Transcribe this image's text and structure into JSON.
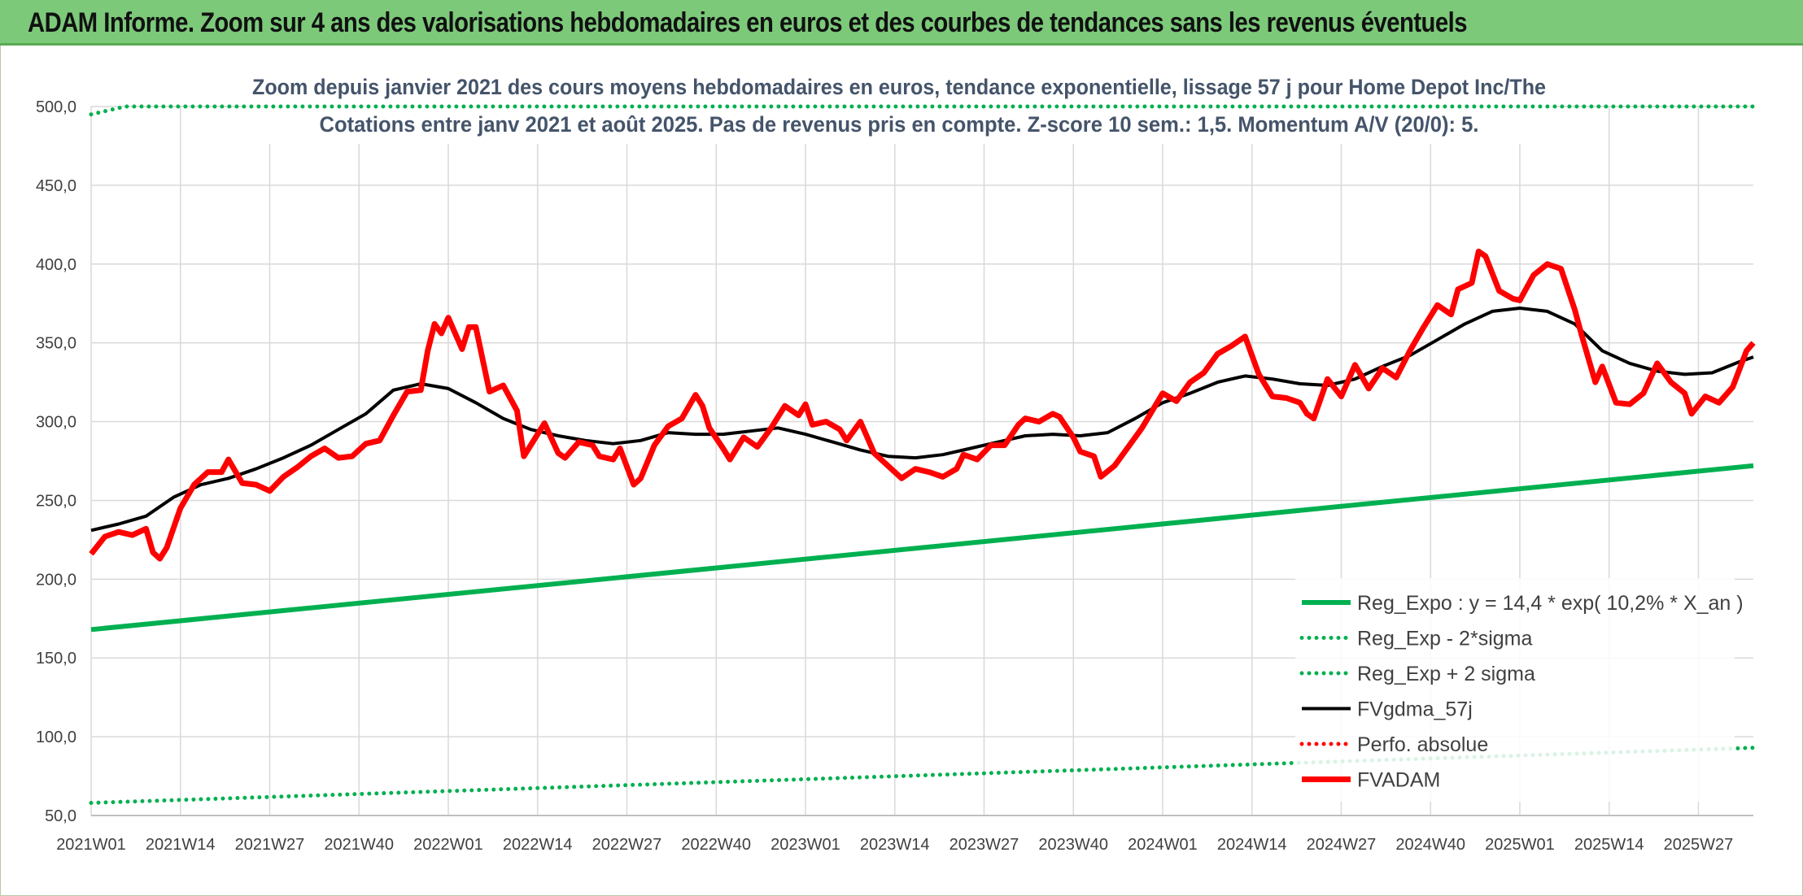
{
  "banner": {
    "title": "ADAM Informe. Zoom sur 4 ans des valorisations hebdomadaires en euros et des courbes de tendances sans les revenus éventuels"
  },
  "colors": {
    "banner_bg": "#7cc97a",
    "regression": "#00b050",
    "price": "#ff0000",
    "average": "#000000"
  },
  "chart_data": {
    "type": "line",
    "title": "Zoom depuis janvier 2021 des cours moyens hebdomadaires en euros, tendance exponentielle, lissage 57 j pour Home Depot Inc/The",
    "subtitle": "Cotations entre janv 2021 et août 2025. Pas de revenus pris en compte. Z-score 10 sem.: 1,5. Momentum A/V (20/0): 5.",
    "ylim": [
      50,
      500
    ],
    "y_ticks": [
      "50,0",
      "100,0",
      "150,0",
      "200,0",
      "250,0",
      "300,0",
      "350,0",
      "400,0",
      "450,0",
      "500,0"
    ],
    "x_range": [
      "2021W01",
      "2025W35"
    ],
    "x_ticks": [
      "2021W01",
      "2021W14",
      "2021W27",
      "2021W40",
      "2022W01",
      "2022W14",
      "2022W27",
      "2022W40",
      "2023W01",
      "2023W14",
      "2023W27",
      "2023W40",
      "2024W01",
      "2024W14",
      "2024W27",
      "2024W40",
      "2025W01",
      "2025W14",
      "2025W27"
    ],
    "grid": true,
    "legend_position": "bottom-right",
    "series": [
      {
        "name": "Reg_Expo : y = 14,4 * exp( 10,2% *  X_an )",
        "style": "solid-thick",
        "color": "#00b050",
        "points": [
          [
            "2021W01",
            168
          ],
          [
            "2025W35",
            272
          ]
        ]
      },
      {
        "name": "Reg_Exp - 2*sigma",
        "style": "dotted",
        "color": "#00b050",
        "points": [
          [
            "2021W01",
            58
          ],
          [
            "2025W35",
            93
          ]
        ]
      },
      {
        "name": "Reg_Exp + 2 sigma",
        "style": "dotted",
        "color": "#00b050",
        "points": [
          [
            "2021W01",
            495
          ],
          [
            "2021W06",
            500
          ],
          [
            "2025W35",
            500
          ]
        ]
      },
      {
        "name": "FVgdma_57j",
        "style": "solid",
        "color": "#000000",
        "points": [
          [
            "2021W01",
            231
          ],
          [
            "2021W05",
            235
          ],
          [
            "2021W09",
            240
          ],
          [
            "2021W13",
            252
          ],
          [
            "2021W17",
            260
          ],
          [
            "2021W21",
            264
          ],
          [
            "2021W25",
            270
          ],
          [
            "2021W29",
            277
          ],
          [
            "2021W33",
            285
          ],
          [
            "2021W37",
            295
          ],
          [
            "2021W41",
            305
          ],
          [
            "2021W45",
            320
          ],
          [
            "2021W49",
            324
          ],
          [
            "2022W01",
            321
          ],
          [
            "2022W05",
            312
          ],
          [
            "2022W09",
            302
          ],
          [
            "2022W13",
            295
          ],
          [
            "2022W17",
            291
          ],
          [
            "2022W21",
            288
          ],
          [
            "2022W25",
            286
          ],
          [
            "2022W29",
            288
          ],
          [
            "2022W33",
            293
          ],
          [
            "2022W37",
            292
          ],
          [
            "2022W41",
            292
          ],
          [
            "2022W45",
            294
          ],
          [
            "2022W49",
            296
          ],
          [
            "2023W01",
            292
          ],
          [
            "2023W05",
            287
          ],
          [
            "2023W09",
            282
          ],
          [
            "2023W13",
            278
          ],
          [
            "2023W17",
            277
          ],
          [
            "2023W21",
            279
          ],
          [
            "2023W25",
            283
          ],
          [
            "2023W29",
            287
          ],
          [
            "2023W33",
            291
          ],
          [
            "2023W37",
            292
          ],
          [
            "2023W41",
            291
          ],
          [
            "2023W45",
            293
          ],
          [
            "2023W49",
            302
          ],
          [
            "2024W01",
            312
          ],
          [
            "2024W05",
            318
          ],
          [
            "2024W09",
            325
          ],
          [
            "2024W13",
            329
          ],
          [
            "2024W17",
            327
          ],
          [
            "2024W21",
            324
          ],
          [
            "2024W25",
            323
          ],
          [
            "2024W29",
            327
          ],
          [
            "2024W33",
            335
          ],
          [
            "2024W37",
            342
          ],
          [
            "2024W41",
            352
          ],
          [
            "2024W45",
            362
          ],
          [
            "2024W49",
            370
          ],
          [
            "2025W01",
            372
          ],
          [
            "2025W05",
            370
          ],
          [
            "2025W09",
            362
          ],
          [
            "2025W13",
            345
          ],
          [
            "2025W17",
            337
          ],
          [
            "2025W21",
            332
          ],
          [
            "2025W25",
            330
          ],
          [
            "2025W29",
            331
          ],
          [
            "2025W33",
            338
          ],
          [
            "2025W35",
            341
          ]
        ]
      },
      {
        "name": "Perfo. absolue",
        "style": "dotted",
        "color": "#ff0000",
        "points": []
      },
      {
        "name": "FVADAM",
        "style": "solid-thick",
        "color": "#ff0000",
        "points": [
          [
            "2021W01",
            216
          ],
          [
            "2021W03",
            227
          ],
          [
            "2021W05",
            230
          ],
          [
            "2021W07",
            228
          ],
          [
            "2021W09",
            232
          ],
          [
            "2021W10",
            217
          ],
          [
            "2021W11",
            213
          ],
          [
            "2021W12",
            220
          ],
          [
            "2021W14",
            245
          ],
          [
            "2021W16",
            260
          ],
          [
            "2021W18",
            268
          ],
          [
            "2021W20",
            268
          ],
          [
            "2021W21",
            276
          ],
          [
            "2021W23",
            261
          ],
          [
            "2021W25",
            260
          ],
          [
            "2021W27",
            256
          ],
          [
            "2021W29",
            265
          ],
          [
            "2021W31",
            271
          ],
          [
            "2021W33",
            278
          ],
          [
            "2021W35",
            283
          ],
          [
            "2021W37",
            277
          ],
          [
            "2021W39",
            278
          ],
          [
            "2021W41",
            286
          ],
          [
            "2021W43",
            288
          ],
          [
            "2021W45",
            304
          ],
          [
            "2021W47",
            319
          ],
          [
            "2021W49",
            320
          ],
          [
            "2021W50",
            345
          ],
          [
            "2021W51",
            362
          ],
          [
            "2021W52",
            356
          ],
          [
            "2022W01",
            366
          ],
          [
            "2022W03",
            346
          ],
          [
            "2022W04",
            360
          ],
          [
            "2022W05",
            360
          ],
          [
            "2022W07",
            319
          ],
          [
            "2022W09",
            323
          ],
          [
            "2022W11",
            307
          ],
          [
            "2022W12",
            278
          ],
          [
            "2022W13",
            285
          ],
          [
            "2022W15",
            299
          ],
          [
            "2022W17",
            280
          ],
          [
            "2022W18",
            277
          ],
          [
            "2022W20",
            287
          ],
          [
            "2022W22",
            285
          ],
          [
            "2022W23",
            278
          ],
          [
            "2022W25",
            276
          ],
          [
            "2022W26",
            283
          ],
          [
            "2022W28",
            260
          ],
          [
            "2022W29",
            264
          ],
          [
            "2022W31",
            285
          ],
          [
            "2022W33",
            297
          ],
          [
            "2022W35",
            302
          ],
          [
            "2022W37",
            317
          ],
          [
            "2022W38",
            310
          ],
          [
            "2022W39",
            296
          ],
          [
            "2022W41",
            283
          ],
          [
            "2022W42",
            276
          ],
          [
            "2022W44",
            290
          ],
          [
            "2022W46",
            284
          ],
          [
            "2022W48",
            296
          ],
          [
            "2022W50",
            310
          ],
          [
            "2022W52",
            304
          ],
          [
            "2023W01",
            311
          ],
          [
            "2023W02",
            298
          ],
          [
            "2023W04",
            300
          ],
          [
            "2023W06",
            295
          ],
          [
            "2023W07",
            288
          ],
          [
            "2023W09",
            300
          ],
          [
            "2023W11",
            280
          ],
          [
            "2023W13",
            272
          ],
          [
            "2023W15",
            264
          ],
          [
            "2023W17",
            270
          ],
          [
            "2023W19",
            268
          ],
          [
            "2023W21",
            265
          ],
          [
            "2023W23",
            270
          ],
          [
            "2023W24",
            279
          ],
          [
            "2023W26",
            276
          ],
          [
            "2023W28",
            285
          ],
          [
            "2023W30",
            285
          ],
          [
            "2023W32",
            298
          ],
          [
            "2023W33",
            302
          ],
          [
            "2023W35",
            300
          ],
          [
            "2023W37",
            305
          ],
          [
            "2023W38",
            303
          ],
          [
            "2023W40",
            290
          ],
          [
            "2023W41",
            281
          ],
          [
            "2023W43",
            278
          ],
          [
            "2023W44",
            265
          ],
          [
            "2023W46",
            272
          ],
          [
            "2023W48",
            284
          ],
          [
            "2023W50",
            296
          ],
          [
            "2024W01",
            318
          ],
          [
            "2024W03",
            313
          ],
          [
            "2024W05",
            325
          ],
          [
            "2024W07",
            331
          ],
          [
            "2024W09",
            343
          ],
          [
            "2024W11",
            348
          ],
          [
            "2024W13",
            354
          ],
          [
            "2024W15",
            330
          ],
          [
            "2024W17",
            316
          ],
          [
            "2024W19",
            315
          ],
          [
            "2024W21",
            312
          ],
          [
            "2024W22",
            305
          ],
          [
            "2024W23",
            302
          ],
          [
            "2024W25",
            327
          ],
          [
            "2024W27",
            316
          ],
          [
            "2024W29",
            336
          ],
          [
            "2024W31",
            321
          ],
          [
            "2024W33",
            334
          ],
          [
            "2024W35",
            328
          ],
          [
            "2024W37",
            345
          ],
          [
            "2024W39",
            360
          ],
          [
            "2024W41",
            374
          ],
          [
            "2024W43",
            368
          ],
          [
            "2024W44",
            384
          ],
          [
            "2024W46",
            388
          ],
          [
            "2024W47",
            408
          ],
          [
            "2024W48",
            405
          ],
          [
            "2024W50",
            383
          ],
          [
            "2024W52",
            378
          ],
          [
            "2025W01",
            377
          ],
          [
            "2025W03",
            393
          ],
          [
            "2025W05",
            400
          ],
          [
            "2025W07",
            397
          ],
          [
            "2025W09",
            371
          ],
          [
            "2025W10",
            355
          ],
          [
            "2025W12",
            325
          ],
          [
            "2025W13",
            335
          ],
          [
            "2025W15",
            312
          ],
          [
            "2025W17",
            311
          ],
          [
            "2025W19",
            318
          ],
          [
            "2025W21",
            337
          ],
          [
            "2025W23",
            325
          ],
          [
            "2025W25",
            318
          ],
          [
            "2025W26",
            305
          ],
          [
            "2025W28",
            316
          ],
          [
            "2025W30",
            312
          ],
          [
            "2025W32",
            322
          ],
          [
            "2025W34",
            345
          ],
          [
            "2025W35",
            350
          ]
        ]
      }
    ]
  }
}
